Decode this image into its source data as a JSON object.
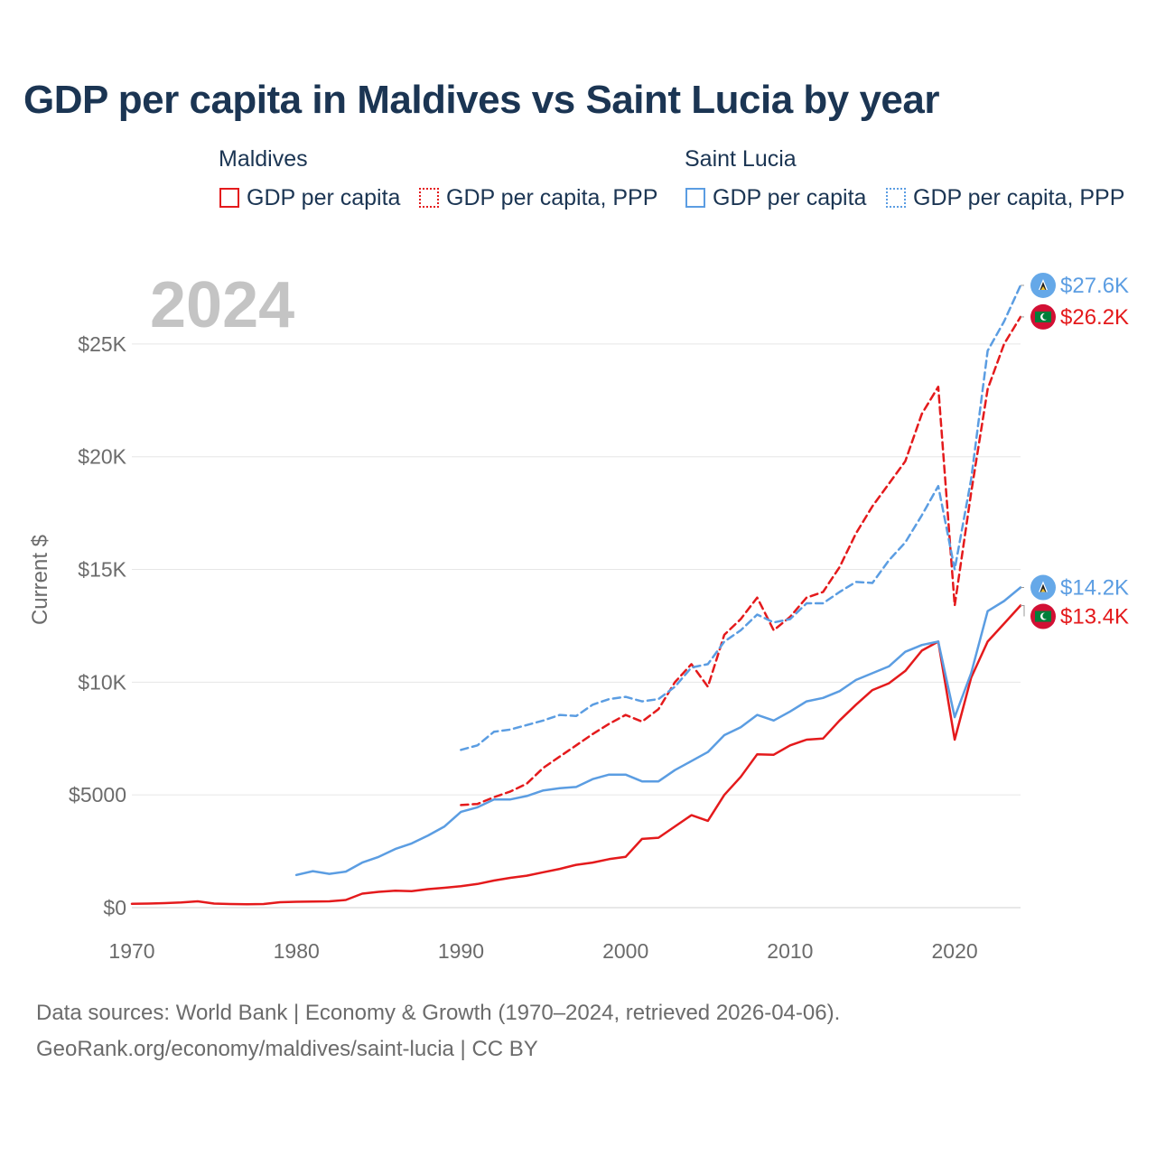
{
  "chart_data": {
    "type": "line",
    "title": "GDP per capita in Maldives vs Saint Lucia by year",
    "year_label": "2024",
    "ylabel": "Current $",
    "xlim": [
      1970,
      2024
    ],
    "ylim": [
      0,
      28000
    ],
    "x_ticks": [
      {
        "value": 1970,
        "label": "1970"
      },
      {
        "value": 1980,
        "label": "1980"
      },
      {
        "value": 1990,
        "label": "1990"
      },
      {
        "value": 2000,
        "label": "2000"
      },
      {
        "value": 2010,
        "label": "2010"
      },
      {
        "value": 2020,
        "label": "2020"
      }
    ],
    "y_ticks": [
      {
        "value": 0,
        "label": "$0"
      },
      {
        "value": 5000,
        "label": "$5000"
      },
      {
        "value": 10000,
        "label": "$10K"
      },
      {
        "value": 15000,
        "label": "$15K"
      },
      {
        "value": 20000,
        "label": "$20K"
      },
      {
        "value": 25000,
        "label": "$25K"
      }
    ],
    "legend_groups": [
      {
        "name": "Maldives",
        "items": [
          "GDP per capita",
          "GDP per capita, PPP"
        ]
      },
      {
        "name": "Saint Lucia",
        "items": [
          "GDP per capita",
          "GDP per capita, PPP"
        ]
      }
    ],
    "series": [
      {
        "name": "Maldives GDP per capita",
        "country": "Maldives",
        "metric": "GDP per capita",
        "color": "#e41a1c",
        "dash": "solid",
        "end_label": "$13.4K",
        "x": [
          1970,
          1971,
          1972,
          1973,
          1974,
          1975,
          1976,
          1977,
          1978,
          1979,
          1980,
          1981,
          1982,
          1983,
          1984,
          1985,
          1986,
          1987,
          1988,
          1989,
          1990,
          1991,
          1992,
          1993,
          1994,
          1995,
          1996,
          1997,
          1998,
          1999,
          2000,
          2001,
          2002,
          2003,
          2004,
          2005,
          2006,
          2007,
          2008,
          2009,
          2010,
          2011,
          2012,
          2013,
          2014,
          2015,
          2016,
          2017,
          2018,
          2019,
          2020,
          2021,
          2022,
          2023,
          2024
        ],
        "values": [
          170,
          180,
          200,
          230,
          280,
          180,
          160,
          150,
          160,
          240,
          260,
          270,
          280,
          340,
          620,
          700,
          750,
          730,
          820,
          880,
          950,
          1050,
          1200,
          1320,
          1420,
          1570,
          1720,
          1900,
          2000,
          2150,
          2250,
          3050,
          3100,
          3600,
          4100,
          3850,
          5000,
          5800,
          6800,
          6780,
          7200,
          7450,
          7500,
          8300,
          9000,
          9650,
          9950,
          10500,
          11400,
          11800,
          7450,
          10200,
          11800,
          12600,
          13400
        ]
      },
      {
        "name": "Maldives GDP per capita, PPP",
        "country": "Maldives",
        "metric": "GDP per capita, PPP",
        "color": "#e41a1c",
        "dash": "dashed",
        "end_label": "$26.2K",
        "x": [
          1990,
          1991,
          1992,
          1993,
          1994,
          1995,
          1996,
          1997,
          1998,
          1999,
          2000,
          2001,
          2002,
          2003,
          2004,
          2005,
          2006,
          2007,
          2008,
          2009,
          2010,
          2011,
          2012,
          2013,
          2014,
          2015,
          2016,
          2017,
          2018,
          2019,
          2020,
          2021,
          2022,
          2023,
          2024
        ],
        "values": [
          4550,
          4600,
          4900,
          5150,
          5500,
          6200,
          6700,
          7200,
          7700,
          8150,
          8550,
          8250,
          8800,
          10000,
          10800,
          9800,
          12100,
          12800,
          13750,
          12300,
          12900,
          13750,
          14000,
          15100,
          16600,
          17800,
          18800,
          19800,
          21900,
          23100,
          13400,
          18400,
          23000,
          25000,
          26200
        ]
      },
      {
        "name": "Saint Lucia GDP per capita",
        "country": "Saint Lucia",
        "metric": "GDP per capita",
        "color": "#5b9de2",
        "dash": "solid",
        "end_label": "$14.2K",
        "x": [
          1980,
          1981,
          1982,
          1983,
          1984,
          1985,
          1986,
          1987,
          1988,
          1989,
          1990,
          1991,
          1992,
          1993,
          1994,
          1995,
          1996,
          1997,
          1998,
          1999,
          2000,
          2001,
          2002,
          2003,
          2004,
          2005,
          2006,
          2007,
          2008,
          2009,
          2010,
          2011,
          2012,
          2013,
          2014,
          2015,
          2016,
          2017,
          2018,
          2019,
          2020,
          2021,
          2022,
          2023,
          2024
        ],
        "values": [
          1450,
          1620,
          1500,
          1600,
          2000,
          2250,
          2600,
          2850,
          3200,
          3600,
          4250,
          4450,
          4800,
          4800,
          4950,
          5200,
          5300,
          5350,
          5700,
          5900,
          5900,
          5600,
          5600,
          6100,
          6500,
          6900,
          7650,
          8000,
          8550,
          8300,
          8700,
          9150,
          9300,
          9600,
          10100,
          10400,
          10700,
          11350,
          11650,
          11800,
          8450,
          10400,
          13150,
          13600,
          14200
        ]
      },
      {
        "name": "Saint Lucia GDP per capita, PPP",
        "country": "Saint Lucia",
        "metric": "GDP per capita, PPP",
        "color": "#5b9de2",
        "dash": "dashed",
        "end_label": "$27.6K",
        "x": [
          1990,
          1991,
          1992,
          1993,
          1994,
          1995,
          1996,
          1997,
          1998,
          1999,
          2000,
          2001,
          2002,
          2003,
          2004,
          2005,
          2006,
          2007,
          2008,
          2009,
          2010,
          2011,
          2012,
          2013,
          2014,
          2015,
          2016,
          2017,
          2018,
          2019,
          2020,
          2021,
          2022,
          2023,
          2024
        ],
        "values": [
          7000,
          7200,
          7800,
          7900,
          8100,
          8300,
          8550,
          8500,
          9000,
          9250,
          9350,
          9150,
          9250,
          9800,
          10650,
          10800,
          11800,
          12300,
          13000,
          12650,
          12800,
          13500,
          13500,
          14000,
          14450,
          14400,
          15400,
          16200,
          17400,
          18700,
          15000,
          19000,
          24700,
          26000,
          27600
        ]
      }
    ]
  },
  "footer": {
    "line1": "Data sources: World Bank | Economy & Growth (1970–2024, retrieved 2026-04-06).",
    "line2": "GeoRank.org/economy/maldives/saint-lucia | CC BY"
  }
}
